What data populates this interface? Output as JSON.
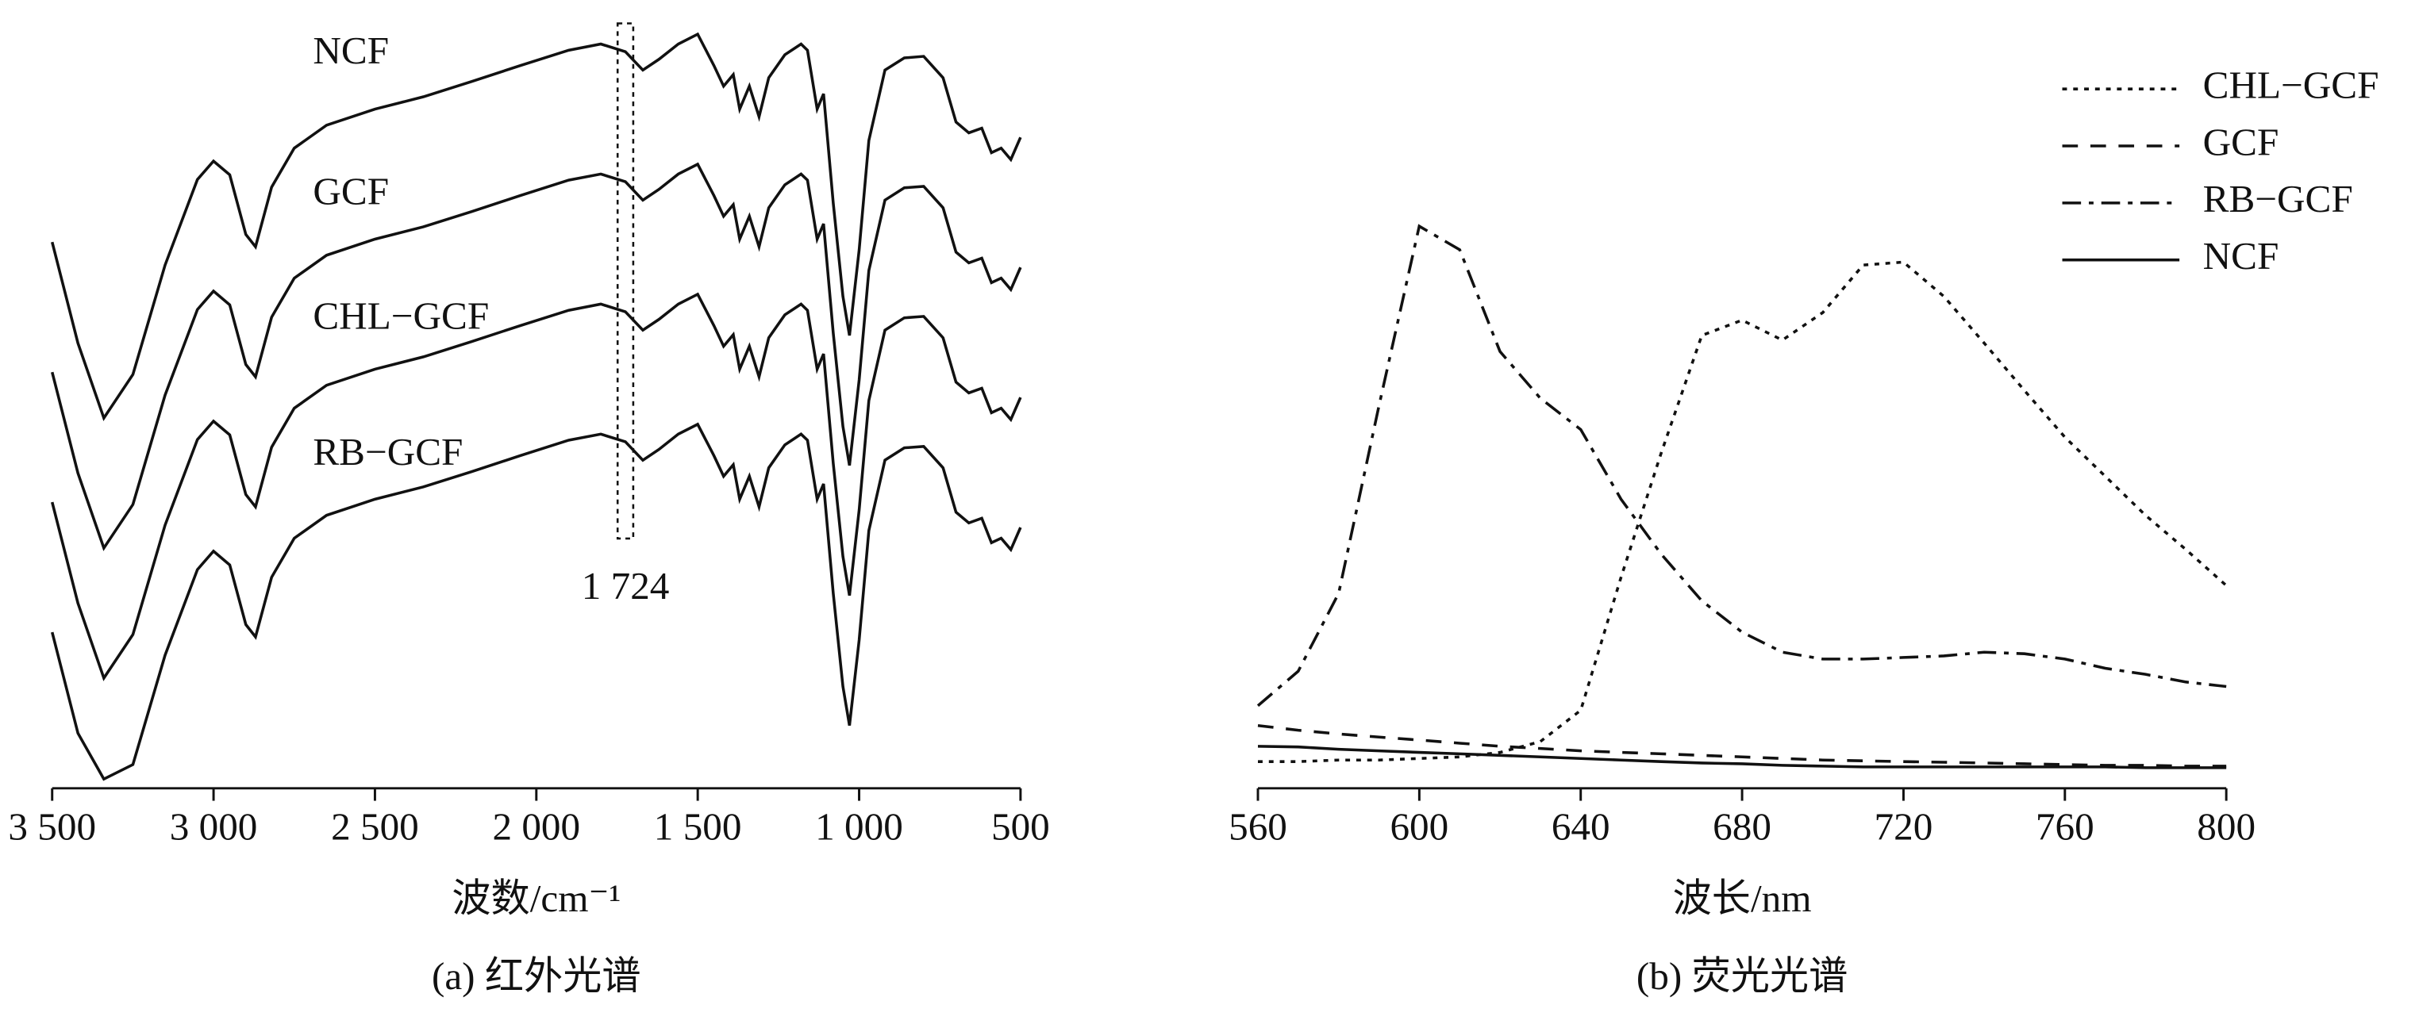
{
  "chart_data": [
    {
      "type": "line",
      "caption": "(a)  红外光谱",
      "xlabel": "波数/cm⁻¹",
      "xlim": [
        3500,
        500
      ],
      "ylim": [
        0,
        100
      ],
      "xticks": [
        {
          "value": 3500,
          "label": "3 500"
        },
        {
          "value": 3000,
          "label": "3 000"
        },
        {
          "value": 2500,
          "label": "2 500"
        },
        {
          "value": 2000,
          "label": "2 000"
        },
        {
          "value": 1500,
          "label": "1 500"
        },
        {
          "value": 1000,
          "label": "1 000"
        },
        500
      ],
      "annotations": [
        {
          "text": "1 724",
          "x": 1724
        }
      ],
      "x": [
        3500,
        3420,
        3340,
        3250,
        3150,
        3050,
        3000,
        2950,
        2900,
        2870,
        2820,
        2750,
        2650,
        2500,
        2350,
        2200,
        2050,
        1900,
        1800,
        1724,
        1670,
        1620,
        1560,
        1500,
        1450,
        1420,
        1390,
        1370,
        1340,
        1310,
        1280,
        1230,
        1180,
        1160,
        1130,
        1110,
        1080,
        1050,
        1030,
        1000,
        970,
        920,
        860,
        800,
        740,
        700,
        660,
        620,
        590,
        560,
        530,
        500
      ],
      "series": [
        {
          "name": "NCF",
          "color": "#111111",
          "values": [
            71.4,
            58.2,
            48.4,
            54.1,
            68.4,
            79.6,
            82.0,
            80.2,
            72.4,
            70.8,
            78.6,
            83.7,
            86.7,
            88.8,
            90.4,
            92.4,
            94.5,
            96.5,
            97.3,
            96.3,
            93.9,
            95.3,
            97.3,
            98.6,
            94.5,
            91.8,
            93.3,
            88.8,
            91.8,
            87.8,
            92.9,
            95.9,
            97.3,
            96.5,
            88.8,
            90.8,
            76.5,
            64.3,
            59.2,
            70.4,
            84.7,
            93.9,
            95.5,
            95.7,
            92.9,
            87.1,
            85.7,
            86.3,
            83.1,
            83.7,
            82.2,
            85.1
          ]
        },
        {
          "name": "GCF",
          "color": "#111111",
          "values": [
            54.4,
            41.2,
            31.4,
            37.1,
            51.4,
            62.6,
            65.0,
            63.2,
            55.4,
            53.8,
            61.6,
            66.7,
            69.7,
            71.8,
            73.4,
            75.4,
            77.5,
            79.5,
            80.3,
            79.3,
            76.9,
            78.3,
            80.3,
            81.6,
            77.5,
            74.8,
            76.3,
            71.8,
            74.8,
            70.8,
            75.9,
            78.9,
            80.3,
            79.5,
            71.8,
            73.8,
            59.5,
            47.3,
            42.2,
            53.4,
            67.7,
            76.9,
            78.5,
            78.7,
            75.9,
            70.1,
            68.7,
            69.3,
            66.1,
            66.7,
            65.2,
            68.1
          ]
        },
        {
          "name": "CHL−GCF",
          "color": "#111111",
          "values": [
            37.4,
            24.2,
            14.4,
            20.1,
            34.4,
            45.6,
            48.0,
            46.2,
            38.4,
            36.8,
            44.6,
            49.7,
            52.7,
            54.8,
            56.4,
            58.4,
            60.5,
            62.5,
            63.3,
            62.3,
            59.9,
            61.3,
            63.3,
            64.6,
            60.5,
            57.8,
            59.3,
            54.8,
            57.8,
            53.8,
            58.9,
            61.9,
            63.3,
            62.5,
            54.8,
            56.8,
            42.5,
            30.3,
            25.2,
            36.4,
            50.7,
            59.9,
            61.5,
            61.7,
            58.9,
            53.1,
            51.7,
            52.3,
            49.1,
            49.7,
            48.2,
            51.1
          ]
        },
        {
          "name": "RB−GCF",
          "color": "#111111",
          "values": [
            20.4,
            7.2,
            1.2,
            3.1,
            17.4,
            28.6,
            31.0,
            29.2,
            21.4,
            19.8,
            27.6,
            32.7,
            35.7,
            37.8,
            39.4,
            41.4,
            43.5,
            45.5,
            46.3,
            45.3,
            42.9,
            44.3,
            46.3,
            47.6,
            43.5,
            40.8,
            42.3,
            37.8,
            40.8,
            36.8,
            41.9,
            44.9,
            46.3,
            45.5,
            37.8,
            39.8,
            25.5,
            13.3,
            8.2,
            19.4,
            33.7,
            42.9,
            44.5,
            44.7,
            41.9,
            36.1,
            34.7,
            35.3,
            32.1,
            32.7,
            31.2,
            34.1
          ]
        }
      ]
    },
    {
      "type": "line",
      "caption": "(b)  荧光光谱",
      "xlabel": "波长/nm",
      "legend": "upper right",
      "xlim": [
        560,
        800
      ],
      "ylim": [
        0,
        100
      ],
      "xticks": [
        560,
        600,
        640,
        680,
        720,
        760,
        800
      ],
      "x": [
        560,
        570,
        580,
        590,
        600,
        610,
        620,
        630,
        640,
        650,
        660,
        670,
        680,
        690,
        700,
        710,
        720,
        730,
        740,
        750,
        760,
        770,
        780,
        790,
        800
      ],
      "series": [
        {
          "name": "CHL−GCF",
          "color": "#111111",
          "dash": "dotted",
          "values": [
            3.5,
            3.5,
            3.7,
            3.7,
            3.9,
            4.1,
            4.7,
            6.1,
            10.2,
            27.6,
            43.9,
            59.2,
            61.2,
            58.6,
            62.2,
            68.4,
            68.8,
            64.3,
            58.2,
            52.0,
            45.9,
            40.8,
            35.7,
            31.2,
            26.5
          ]
        },
        {
          "name": "GCF",
          "color": "#111111",
          "dash": "dashed",
          "values": [
            8.2,
            7.6,
            7.1,
            6.7,
            6.3,
            5.9,
            5.5,
            5.2,
            4.9,
            4.7,
            4.5,
            4.3,
            4.1,
            3.9,
            3.7,
            3.6,
            3.5,
            3.4,
            3.3,
            3.2,
            3.1,
            3.0,
            3.0,
            2.9,
            2.9
          ]
        },
        {
          "name": "RB−GCF",
          "color": "#111111",
          "dash": "dashdot",
          "values": [
            10.8,
            15.3,
            25.5,
            50.0,
            73.5,
            70.4,
            57.1,
            51.0,
            46.9,
            37.8,
            30.6,
            24.5,
            20.4,
            17.8,
            16.9,
            16.9,
            17.1,
            17.3,
            17.8,
            17.6,
            16.9,
            15.7,
            14.9,
            13.9,
            13.3
          ]
        },
        {
          "name": "NCF",
          "color": "#111111",
          "dash": "solid",
          "values": [
            5.5,
            5.4,
            5.1,
            4.9,
            4.7,
            4.5,
            4.3,
            4.1,
            3.9,
            3.7,
            3.5,
            3.3,
            3.2,
            3.0,
            2.9,
            2.8,
            2.8,
            2.8,
            2.8,
            2.8,
            2.8,
            2.8,
            2.7,
            2.7,
            2.7
          ]
        }
      ]
    }
  ]
}
